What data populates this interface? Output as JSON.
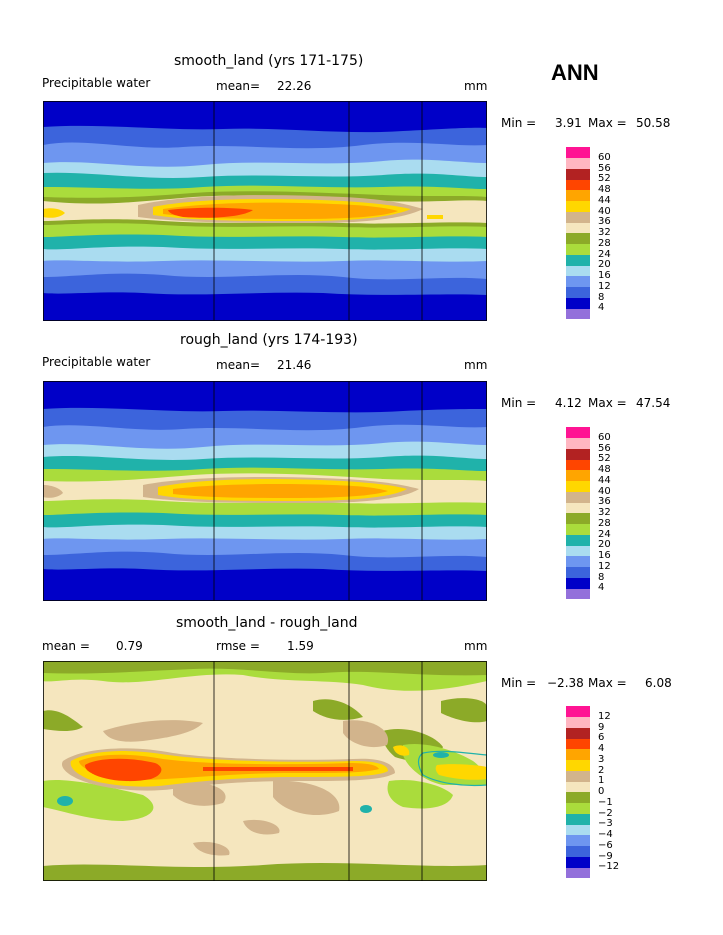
{
  "season": "ANN",
  "panels": [
    {
      "title": "smooth_land (yrs 171-175)",
      "left_label": "Precipitable water",
      "mean_label": "mean=",
      "mean_value": "22.26",
      "rmse_label": "",
      "rmse_value": "",
      "units": "mm",
      "min_label": "Min =",
      "min_value": "3.91",
      "max_label": "Max =",
      "max_value": "50.58",
      "colorbar": [
        "4",
        "8",
        "12",
        "16",
        "20",
        "24",
        "28",
        "32",
        "36",
        "40",
        "44",
        "48",
        "52",
        "56",
        "60"
      ]
    },
    {
      "title": "rough_land (yrs 174-193)",
      "left_label": "Precipitable water",
      "mean_label": "mean=",
      "mean_value": "21.46",
      "rmse_label": "",
      "rmse_value": "",
      "units": "mm",
      "min_label": "Min =",
      "min_value": "4.12",
      "max_label": "Max =",
      "max_value": "47.54",
      "colorbar": [
        "4",
        "8",
        "12",
        "16",
        "20",
        "24",
        "28",
        "32",
        "36",
        "40",
        "44",
        "48",
        "52",
        "56",
        "60"
      ]
    },
    {
      "title": "smooth_land - rough_land",
      "left_label": "mean =",
      "mean_label": "",
      "mean_value": "0.79",
      "rmse_label": "rmse =",
      "rmse_value": "1.59",
      "units": "mm",
      "min_label": "Min =",
      "min_value": "−2.38",
      "max_label": "Max =",
      "max_value": "6.08",
      "colorbar": [
        "−12",
        "−9",
        "−6",
        "−4",
        "−3",
        "−2",
        "−1",
        "0",
        "1",
        "2",
        "3",
        "4",
        "6",
        "9",
        "12"
      ]
    }
  ],
  "colors": {
    "scale": [
      "#9370db",
      "#0000c8",
      "#3c64dc",
      "#6e96f0",
      "#aadcf0",
      "#20b2aa",
      "#aadc3c",
      "#8caa28",
      "#f5e6be",
      "#d2b48c",
      "#ffd700",
      "#ffa500",
      "#ff4500",
      "#b22222",
      "#ffb6c1",
      "#ff1493"
    ]
  },
  "chart_data": [
    {
      "type": "heatmap",
      "title": "smooth_land (yrs 171-175)",
      "variable": "Precipitable water",
      "units": "mm",
      "mean": 22.26,
      "min": 3.91,
      "max": 50.58,
      "levels": [
        4,
        8,
        12,
        16,
        20,
        24,
        28,
        32,
        36,
        40,
        44,
        48,
        52,
        56,
        60
      ]
    },
    {
      "type": "heatmap",
      "title": "rough_land (yrs 174-193)",
      "variable": "Precipitable water",
      "units": "mm",
      "mean": 21.46,
      "min": 4.12,
      "max": 47.54,
      "levels": [
        4,
        8,
        12,
        16,
        20,
        24,
        28,
        32,
        36,
        40,
        44,
        48,
        52,
        56,
        60
      ]
    },
    {
      "type": "heatmap",
      "title": "smooth_land - rough_land",
      "units": "mm",
      "mean": 0.79,
      "rmse": 1.59,
      "min": -2.38,
      "max": 6.08,
      "levels": [
        -12,
        -9,
        -6,
        -4,
        -3,
        -2,
        -1,
        0,
        1,
        2,
        3,
        4,
        6,
        9,
        12
      ]
    }
  ]
}
